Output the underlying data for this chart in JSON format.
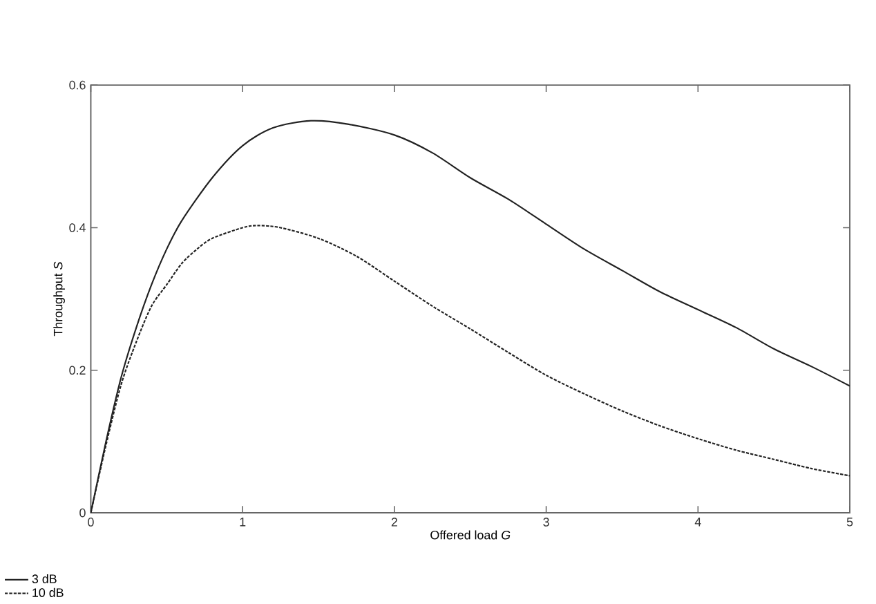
{
  "chart_data": {
    "type": "line",
    "xlabel": "Offered load *G*",
    "ylabel": "Throughput *S*",
    "xlim": [
      0,
      5
    ],
    "ylim": [
      0,
      0.6
    ],
    "xticks": [
      0,
      1,
      2,
      3,
      4,
      5
    ],
    "yticks": [
      0,
      0.2,
      0.4,
      0.6
    ],
    "legend": "bottom left",
    "grid": false,
    "marker": "none",
    "series": [
      {
        "name": "3 dB",
        "color": "#222222",
        "line_style": "solid",
        "x": [
          0,
          0.1,
          0.2,
          0.3,
          0.4,
          0.5,
          0.6,
          0.8,
          1.0,
          1.2,
          1.45,
          1.7,
          2.0,
          2.25,
          2.5,
          2.75,
          3.0,
          3.25,
          3.5,
          3.75,
          4.0,
          4.25,
          4.5,
          4.75,
          5.0
        ],
        "values": [
          0,
          0.1,
          0.19,
          0.26,
          0.32,
          0.37,
          0.41,
          0.47,
          0.515,
          0.54,
          0.55,
          0.545,
          0.53,
          0.505,
          0.47,
          0.44,
          0.405,
          0.37,
          0.34,
          0.31,
          0.285,
          0.26,
          0.23,
          0.205,
          0.178
        ]
      },
      {
        "name": "10 dB",
        "color": "#222222",
        "line_style": "dashed",
        "x": [
          0,
          0.1,
          0.2,
          0.3,
          0.4,
          0.5,
          0.6,
          0.7,
          0.8,
          1.0,
          1.1,
          1.25,
          1.5,
          1.75,
          2.0,
          2.25,
          2.5,
          2.75,
          3.0,
          3.25,
          3.5,
          3.75,
          4.0,
          4.25,
          4.5,
          4.75,
          5.0
        ],
        "values": [
          0,
          0.095,
          0.18,
          0.24,
          0.29,
          0.32,
          0.35,
          0.37,
          0.385,
          0.4,
          0.403,
          0.4,
          0.385,
          0.36,
          0.325,
          0.29,
          0.258,
          0.225,
          0.193,
          0.167,
          0.143,
          0.122,
          0.104,
          0.088,
          0.075,
          0.062,
          0.052
        ]
      }
    ]
  }
}
